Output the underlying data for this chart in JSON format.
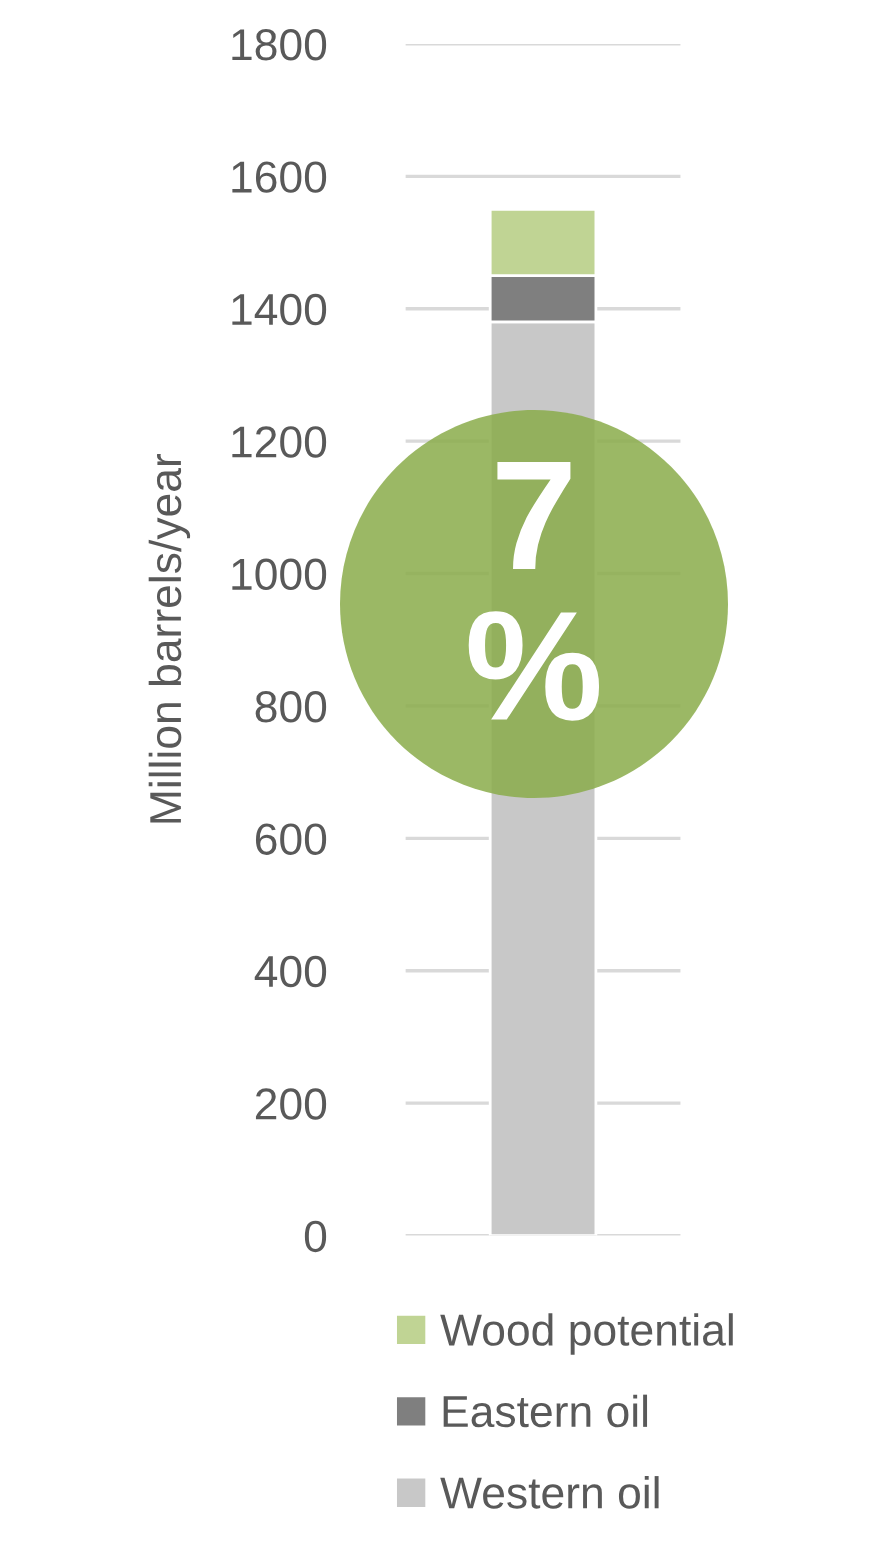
{
  "chart_data": {
    "type": "bar",
    "stacked": true,
    "ylabel": "Million barrels/year",
    "categories": [
      null
    ],
    "series": [
      {
        "name": "Western oil",
        "color": "#c8c8c8",
        "values": [
          1380
        ]
      },
      {
        "name": "Eastern oil",
        "color": "#7f7f7f",
        "values": [
          70
        ]
      },
      {
        "name": "Wood potential",
        "color": "#c0d494",
        "values": [
          100
        ]
      }
    ],
    "ylim": [
      0,
      1800
    ],
    "yticks": [
      0,
      200,
      400,
      600,
      800,
      1000,
      1200,
      1400,
      1600,
      1800
    ],
    "grid": "y",
    "legend": "bottom",
    "tick_labels": "y",
    "annotations": [
      "7\n%"
    ]
  }
}
